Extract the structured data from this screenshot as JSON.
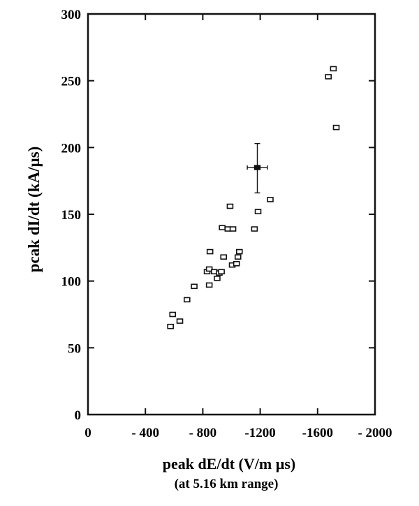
{
  "chart_data": {
    "type": "scatter",
    "title": "",
    "xlabel": "peak dE/dt (V/m µs)",
    "xlabel_note": "(at 5.16 km range)",
    "ylabel": "pcak dI/dt (kA/µs)",
    "x_axis_orientation": "increasingly negative to the right",
    "xlim": [
      0,
      -2000
    ],
    "ylim": [
      0,
      300
    ],
    "x_ticks": [
      0,
      -400,
      -800,
      -1200,
      -1600,
      -2000
    ],
    "x_tick_labels": [
      "0",
      "- 400",
      "- 800",
      "-1200",
      "-1600",
      "- 2000"
    ],
    "y_ticks": [
      0,
      50,
      100,
      150,
      200,
      250,
      300
    ],
    "y_tick_labels": [
      "0",
      "50",
      "100",
      "150",
      "200",
      "250",
      "300"
    ],
    "grid": false,
    "legend": "none",
    "marker": "open-square",
    "points": [
      {
        "x": -575,
        "y": 66
      },
      {
        "x": -590,
        "y": 75
      },
      {
        "x": -640,
        "y": 70
      },
      {
        "x": -690,
        "y": 86
      },
      {
        "x": -740,
        "y": 96
      },
      {
        "x": -845,
        "y": 97
      },
      {
        "x": -830,
        "y": 107
      },
      {
        "x": -845,
        "y": 109
      },
      {
        "x": -880,
        "y": 107
      },
      {
        "x": -900,
        "y": 102
      },
      {
        "x": -915,
        "y": 106
      },
      {
        "x": -930,
        "y": 107
      },
      {
        "x": -850,
        "y": 122
      },
      {
        "x": -945,
        "y": 118
      },
      {
        "x": -1005,
        "y": 112
      },
      {
        "x": -1035,
        "y": 113
      },
      {
        "x": -1045,
        "y": 118
      },
      {
        "x": -1055,
        "y": 122
      },
      {
        "x": -935,
        "y": 140
      },
      {
        "x": -975,
        "y": 139
      },
      {
        "x": -1010,
        "y": 139
      },
      {
        "x": -990,
        "y": 156
      },
      {
        "x": -1160,
        "y": 139
      },
      {
        "x": -1185,
        "y": 152
      },
      {
        "x": -1270,
        "y": 161
      },
      {
        "x": -1675,
        "y": 253
      },
      {
        "x": -1710,
        "y": 259
      },
      {
        "x": -1730,
        "y": 215
      }
    ],
    "error_point": {
      "x": -1180,
      "y": 185,
      "x_err": 70,
      "y_err_low": 19,
      "y_err_high": 18
    },
    "colors": {
      "ink": "#111111",
      "background": "#ffffff"
    }
  }
}
